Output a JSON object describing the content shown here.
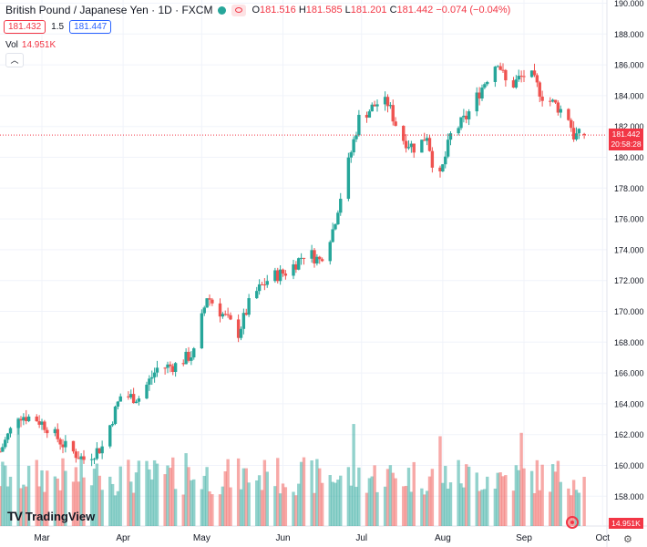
{
  "legend": {
    "symbol": "British Pound / Japanese Yen · 1D · FXCM",
    "open_label": "O",
    "open": "181.516",
    "high_label": "H",
    "high": "181.585",
    "low_label": "L",
    "low": "181.201",
    "close_label": "C",
    "close": "181.442",
    "change": "−0.074 (−0.04%)"
  },
  "trade": {
    "sell_price": "181.432",
    "spread": "1.5",
    "buy_price": "181.447"
  },
  "volume_legend": {
    "label": "Vol",
    "value": "14.951K"
  },
  "logo_text": "TradingView",
  "price_badge": {
    "price": "181.442",
    "countdown": "20:58:28"
  },
  "volume_badge": "14.951K",
  "colors": {
    "up": "#26a69a",
    "down": "#ef5350",
    "grid": "#f0f3fa",
    "price_line": "#f23645"
  },
  "chart_data": {
    "type": "candlestick",
    "x_tick_labels": [
      "Mar",
      "Apr",
      "May",
      "Jun",
      "Jul",
      "Aug",
      "Sep",
      "Oct"
    ],
    "y_tick_labels": [
      "158.000",
      "160.000",
      "162.000",
      "164.000",
      "166.000",
      "168.000",
      "170.000",
      "172.000",
      "174.000",
      "176.000",
      "178.000",
      "180.000",
      "182.000",
      "184.000",
      "186.000",
      "188.000",
      "190.000"
    ],
    "ylim": [
      156.3,
      190.0
    ],
    "current_price": 181.442,
    "last_volume": "14.951K",
    "close_path": [
      {
        "date": "2023-02-13",
        "close": 160.9
      },
      {
        "date": "2023-02-20",
        "close": 163.3
      },
      {
        "date": "2023-02-27",
        "close": 163.0
      },
      {
        "date": "2023-03-03",
        "close": 162.5
      },
      {
        "date": "2023-03-10",
        "close": 161.2
      },
      {
        "date": "2023-03-17",
        "close": 160.4
      },
      {
        "date": "2023-03-24",
        "close": 161.2
      },
      {
        "date": "2023-03-31",
        "close": 164.5
      },
      {
        "date": "2023-04-07",
        "close": 164.4
      },
      {
        "date": "2023-04-14",
        "close": 166.3
      },
      {
        "date": "2023-04-21",
        "close": 166.5
      },
      {
        "date": "2023-04-28",
        "close": 167.3
      },
      {
        "date": "2023-05-03",
        "close": 171.0
      },
      {
        "date": "2023-05-10",
        "close": 169.6
      },
      {
        "date": "2023-05-15",
        "close": 168.6
      },
      {
        "date": "2023-05-20",
        "close": 170.9
      },
      {
        "date": "2023-05-27",
        "close": 172.2
      },
      {
        "date": "2023-06-03",
        "close": 172.6
      },
      {
        "date": "2023-06-10",
        "close": 173.9
      },
      {
        "date": "2023-06-15",
        "close": 173.3
      },
      {
        "date": "2023-06-20",
        "close": 175.3
      },
      {
        "date": "2023-06-24",
        "close": 178.2
      },
      {
        "date": "2023-06-30",
        "close": 182.5
      },
      {
        "date": "2023-07-07",
        "close": 183.5
      },
      {
        "date": "2023-07-11",
        "close": 183.5
      },
      {
        "date": "2023-07-16",
        "close": 181.3
      },
      {
        "date": "2023-07-22",
        "close": 180.5
      },
      {
        "date": "2023-07-26",
        "close": 181.5
      },
      {
        "date": "2023-07-30",
        "close": 178.0
      },
      {
        "date": "2023-08-04",
        "close": 181.4
      },
      {
        "date": "2023-08-10",
        "close": 182.6
      },
      {
        "date": "2023-08-18",
        "close": 185.2
      },
      {
        "date": "2023-08-22",
        "close": 186.3
      },
      {
        "date": "2023-08-26",
        "close": 184.4
      },
      {
        "date": "2023-08-30",
        "close": 185.1
      },
      {
        "date": "2023-09-03",
        "close": 185.5
      },
      {
        "date": "2023-09-08",
        "close": 184.0
      },
      {
        "date": "2023-09-13",
        "close": 183.4
      },
      {
        "date": "2023-09-18",
        "close": 182.6
      },
      {
        "date": "2023-09-20",
        "close": 181.4
      },
      {
        "date": "2023-09-24",
        "close": 181.442
      }
    ]
  }
}
